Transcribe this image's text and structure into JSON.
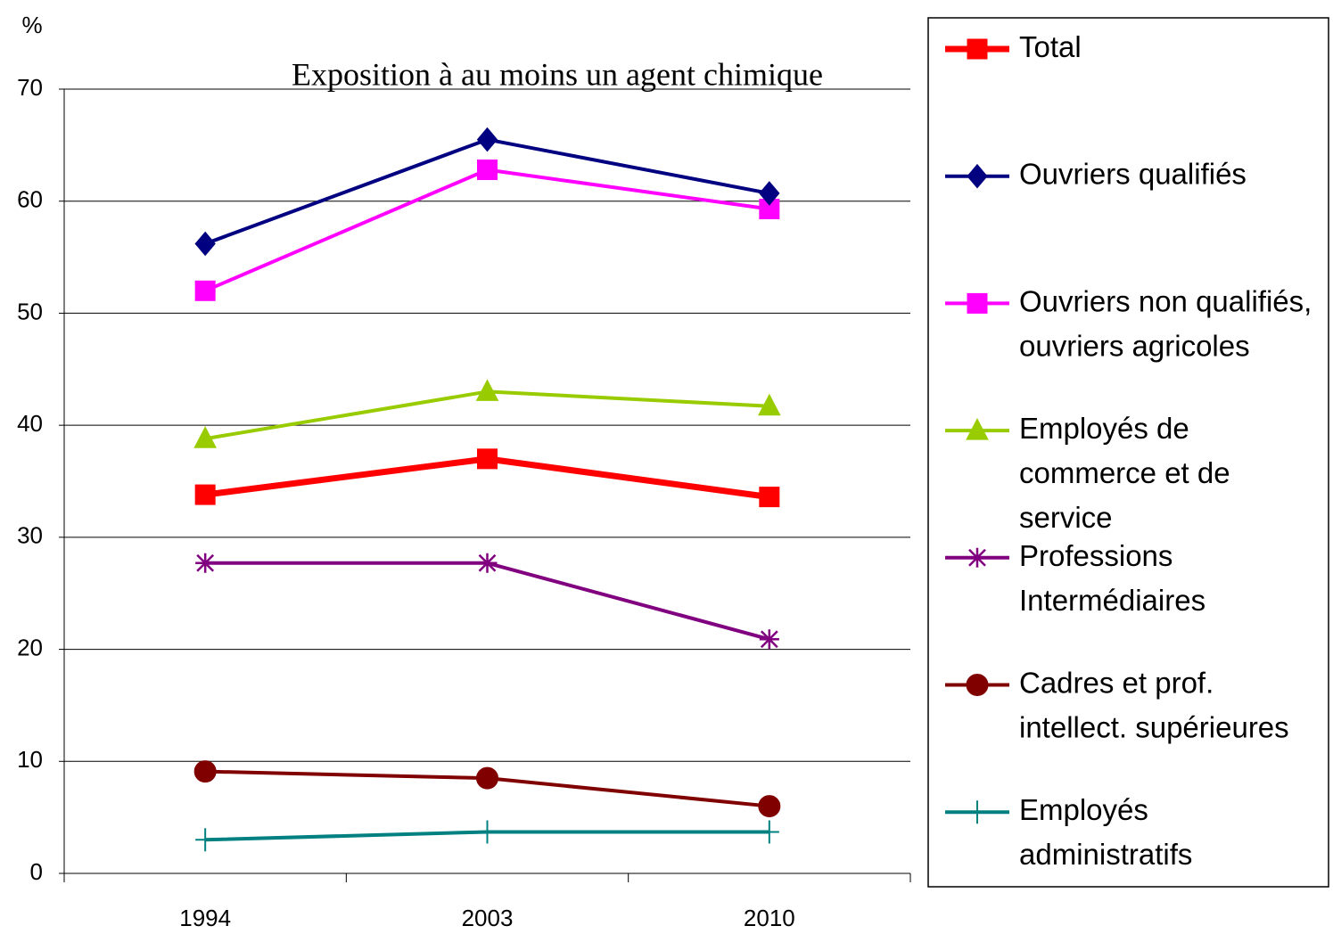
{
  "chart_data": {
    "type": "line",
    "title": "Exposition à au moins un agent chimique",
    "y_label": "%",
    "categories": [
      "1994",
      "2003",
      "2010"
    ],
    "ylim": [
      0,
      70
    ],
    "yticks": [
      0,
      10,
      20,
      30,
      40,
      50,
      60,
      70
    ],
    "grid": true,
    "legend": "right",
    "series": [
      {
        "name": "Total",
        "color": "#ff0000",
        "marker": "square",
        "values": [
          33.8,
          37.0,
          33.6
        ]
      },
      {
        "name": "Ouvriers qualifiés",
        "color": "#000080",
        "marker": "diamond",
        "values": [
          56.2,
          65.5,
          60.7
        ]
      },
      {
        "name": "Ouvriers non qualifiés,\nouvriers agricoles",
        "color": "#ff00ff",
        "marker": "square",
        "values": [
          52.0,
          62.8,
          59.3
        ]
      },
      {
        "name": "Employés de\ncommerce et de\nservice",
        "color": "#99cc00",
        "marker": "triangle",
        "values": [
          38.8,
          43.0,
          41.7
        ]
      },
      {
        "name": "Professions\nIntermédiaires",
        "color": "#800080",
        "marker": "asterisk",
        "values": [
          27.7,
          27.7,
          20.9
        ]
      },
      {
        "name": "Cadres et prof.\nintellect. supérieures",
        "color": "#800000",
        "marker": "circle",
        "values": [
          9.1,
          8.5,
          6.0
        ]
      },
      {
        "name": "Employés\nadministratifs",
        "color": "#008080",
        "marker": "plus",
        "values": [
          3.0,
          3.7,
          3.7
        ]
      }
    ]
  }
}
